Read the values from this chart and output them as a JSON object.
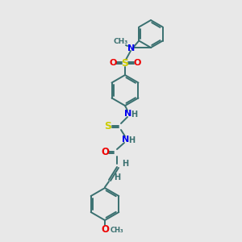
{
  "bg_color": "#e8e8e8",
  "bond_color": "#3a7070",
  "atom_colors": {
    "N": "#0000ee",
    "O": "#ee0000",
    "S": "#cccc00",
    "H": "#3a7070",
    "C": "#3a7070"
  },
  "figsize": [
    3.0,
    3.0
  ],
  "dpi": 100,
  "bond_lw": 1.4,
  "font_size": 7.0
}
